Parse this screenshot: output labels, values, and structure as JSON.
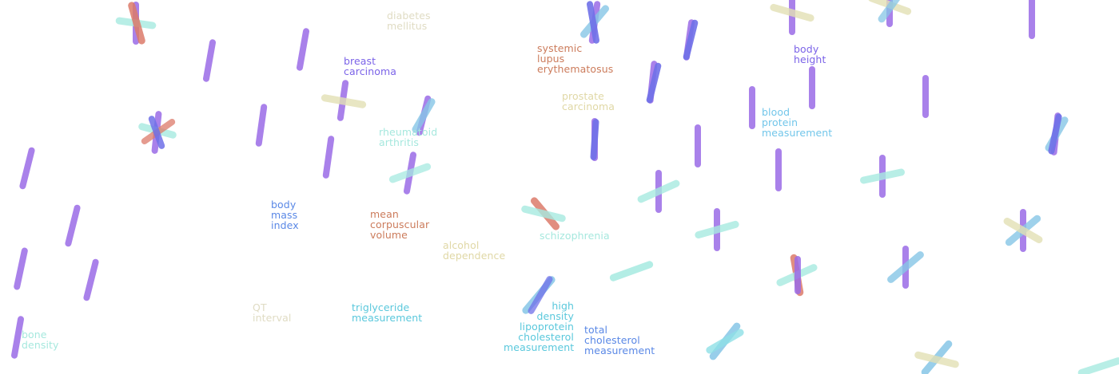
{
  "colors": {
    "purple": "#9a6be6",
    "blue": "#6f70e8",
    "red": "#dc7a6a",
    "tan": "#e2e0b4",
    "mint": "#a6eae0",
    "cyan": "#8ee0e6",
    "sky": "#86c6e6"
  },
  "labels": {
    "diabetes": "diabetes\nmellitus",
    "breast_carcinoma": "breast\ncarcinoma",
    "sle": "systemic\nlupus\nerythematosus",
    "body_height": "body\nheight",
    "prostate_carcinoma": "prostate\ncarcinoma",
    "blood_protein": "blood\nprotein\nmeasurement",
    "rheumatoid_arthritis": "rheumatoid\narthritis",
    "bmi": "body\nmass\nindex",
    "mcv": "mean\ncorpuscular\nvolume",
    "alcohol_dependence": "alcohol\ndependence",
    "schizophrenia": "schizophrenia",
    "qt_interval": "QT\ninterval",
    "triglyceride": "triglyceride\nmeasurement",
    "hdl": "high\ndensity\nlipoprotein\ncholesterol\nmeasurement",
    "total_cholesterol": "total\ncholesterol\nmeasurement",
    "bone_density": "bone\ndensity"
  }
}
